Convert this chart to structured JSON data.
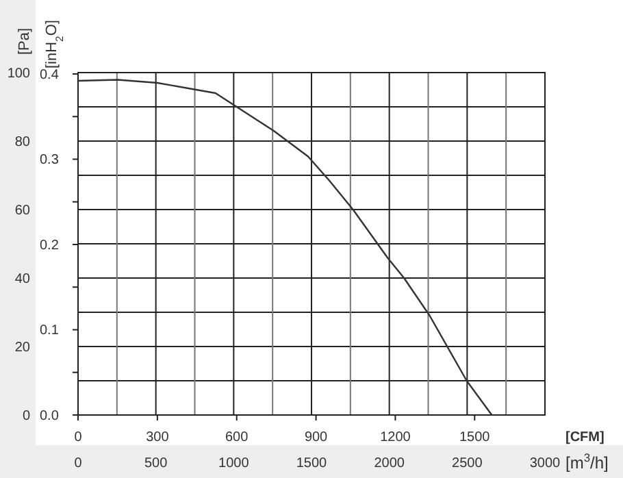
{
  "chart_data": {
    "type": "line",
    "xlabel": "[CFM]",
    "ylabel": "[Pa]",
    "y2label": "[inH$_{2}$O]",
    "x2label": "[m$^{3}$/h]",
    "x": [
      0,
      150,
      300,
      520,
      740,
      870,
      950,
      1040,
      1170,
      1233,
      1330,
      1470,
      1565
    ],
    "series": [
      {
        "color": "#333333",
        "values": [
          97.6,
          97.9,
          97,
          94,
          83,
          75.5,
          68.5,
          60,
          46,
          40,
          29,
          10,
          0
        ]
      }
    ],
    "xlim": [
      0,
      1766
    ],
    "xticks": [
      0,
      300,
      600,
      900,
      1200,
      1500
    ],
    "x2lim": [
      0,
      3000
    ],
    "x2ticks": [
      0,
      {
        "value": 250,
        "label": null
      },
      500,
      {
        "value": 750,
        "label": null
      },
      1000,
      {
        "value": 1250,
        "label": null
      },
      1500,
      {
        "value": 1750,
        "label": null
      },
      2000,
      {
        "value": 2250,
        "label": null
      },
      2500,
      {
        "value": 2750,
        "label": null
      },
      3000
    ],
    "ylim": [
      0,
      100
    ],
    "yticks": [
      0,
      {
        "value": 10,
        "label": null
      },
      20,
      {
        "value": 30,
        "label": null
      },
      40,
      {
        "value": 50,
        "label": null
      },
      60,
      {
        "value": 70,
        "label": null
      },
      80,
      {
        "value": 90,
        "label": null
      },
      100
    ],
    "y2lim": [
      0,
      0.4016
    ],
    "y2ticks": [
      {
        "value": 0,
        "label": "0.0"
      },
      {
        "value": 0.05,
        "label": null
      },
      0.1,
      {
        "value": 0.15,
        "label": null
      },
      0.2,
      {
        "value": 0.25,
        "label": null
      },
      0.3,
      {
        "value": 0.35,
        "label": null
      },
      0.4
    ],
    "grid": true,
    "marker": "none",
    "line_style": "solid"
  }
}
